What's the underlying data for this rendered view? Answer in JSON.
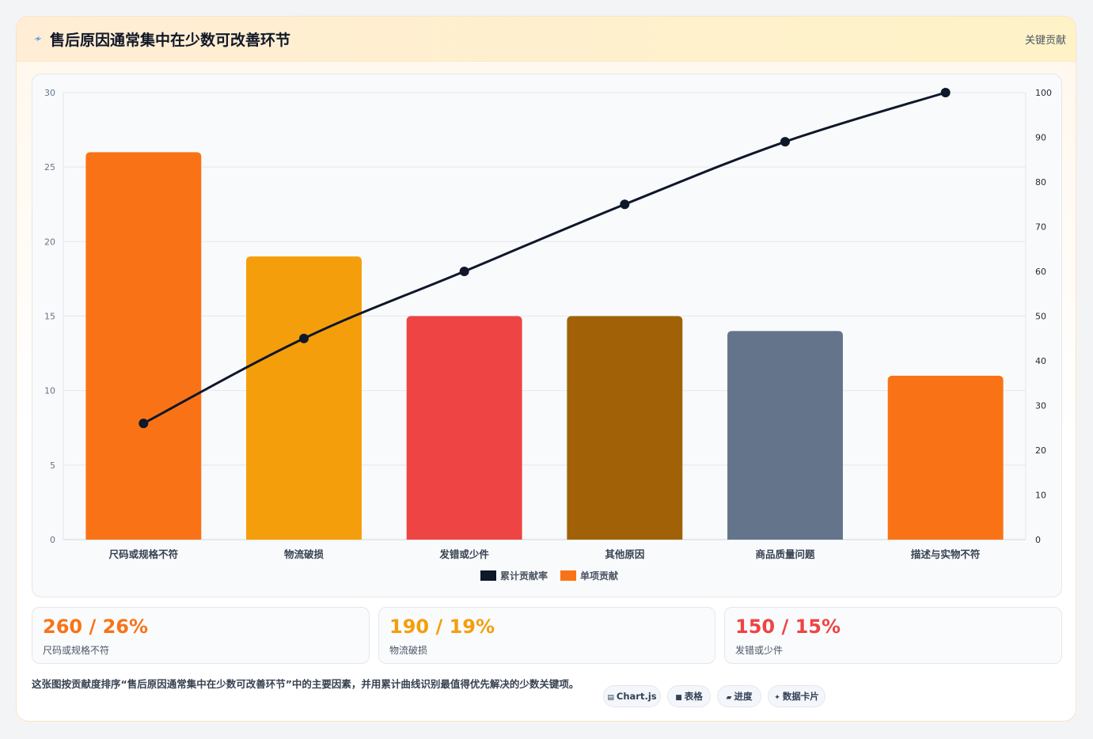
{
  "header": {
    "title": "售后原因通常集中在少数可改善环节",
    "tag": "关键贡献"
  },
  "chart_data": {
    "type": "bar",
    "categories": [
      "尺码或规格不符",
      "物流破损",
      "发错或少件",
      "其他原因",
      "商品质量问题",
      "描述与实物不符"
    ],
    "series": [
      {
        "name": "单项贡献",
        "type": "bar",
        "axis": "left",
        "values": [
          26,
          19,
          15,
          15,
          14,
          11
        ]
      },
      {
        "name": "累计贡献率",
        "type": "line",
        "axis": "right",
        "values": [
          26,
          45,
          60,
          75,
          89,
          100
        ]
      }
    ],
    "bar_colors": [
      "#f97316",
      "#f59e0b",
      "#ef4444",
      "#a16207",
      "#64748b",
      "#f97316"
    ],
    "line_color": "#0f172a",
    "ylim_left": [
      0,
      30
    ],
    "yticks_left": [
      0,
      5,
      10,
      15,
      20,
      25,
      30
    ],
    "ylim_right": [
      0,
      100
    ],
    "yticks_right": [
      0,
      10,
      20,
      30,
      40,
      50,
      60,
      70,
      80,
      90,
      100
    ],
    "legend": [
      {
        "label": "累计贡献率",
        "color": "#0f172a"
      },
      {
        "label": "单项贡献",
        "color": "#f97316"
      }
    ],
    "legend_position": "bottom",
    "grid": true
  },
  "stats": [
    {
      "value": "260 / 26%",
      "label": "尺码或规格不符",
      "color": "#f97316"
    },
    {
      "value": "190 / 19%",
      "label": "物流破损",
      "color": "#f59e0b"
    },
    {
      "value": "150 / 15%",
      "label": "发错或少件",
      "color": "#ef4444"
    }
  ],
  "footer": {
    "description": "这张图按贡献度排序“售后原因通常集中在少数可改善环节”中的主要因素，并用累计曲线识别最值得优先解决的少数关键项。",
    "pills": [
      {
        "icon": "▤",
        "label": "Chart.js"
      },
      {
        "icon": "■",
        "label": "表格"
      },
      {
        "icon": "▰",
        "label": "进度"
      },
      {
        "icon": "✦",
        "label": "数据卡片"
      }
    ]
  }
}
